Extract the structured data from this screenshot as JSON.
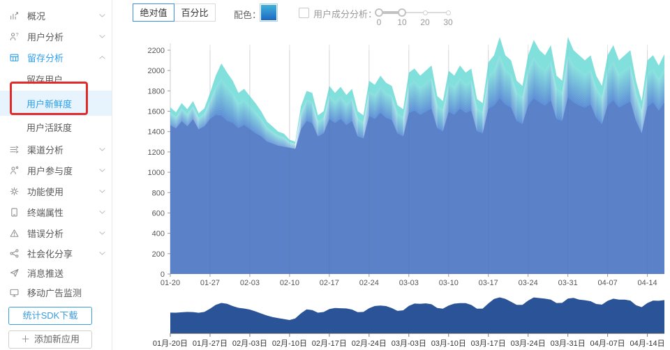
{
  "sidebar": {
    "items": [
      {
        "name": "overview",
        "icon": "chart-trend",
        "label": "概况",
        "chevron": "down"
      },
      {
        "name": "user-analysis",
        "icon": "user-question",
        "label": "用户分析",
        "chevron": "down"
      },
      {
        "name": "retention-analysis",
        "icon": "retention-grid",
        "label": "留存分析",
        "chevron": "up",
        "parent_active": true
      },
      {
        "name": "retained-users",
        "label": "留存用户",
        "sub": true
      },
      {
        "name": "user-freshness",
        "label": "用户新鲜度",
        "sub": true,
        "selected": true
      },
      {
        "name": "user-activity",
        "label": "用户活跃度",
        "sub": true
      },
      {
        "name": "channel-analysis",
        "icon": "channel",
        "label": "渠道分析",
        "chevron": "down"
      },
      {
        "name": "user-engagement",
        "icon": "user-engage",
        "label": "用户参与度",
        "chevron": "down"
      },
      {
        "name": "feature-usage",
        "icon": "gear",
        "label": "功能使用",
        "chevron": "down"
      },
      {
        "name": "device-attributes",
        "icon": "device",
        "label": "终端属性",
        "chevron": "down"
      },
      {
        "name": "error-analysis",
        "icon": "warning-triangle",
        "label": "错误分析",
        "chevron": "down"
      },
      {
        "name": "social-share",
        "icon": "share-nodes",
        "label": "社会化分享",
        "chevron": "down",
        "compact": true
      },
      {
        "name": "message-push",
        "icon": "paper-plane",
        "label": "消息推送",
        "compact": true
      },
      {
        "name": "mobile-ad-monitor",
        "icon": "ad-monitor",
        "label": "移动广告监测",
        "compact": true
      }
    ],
    "sdk_button": "统计SDK下载",
    "add_app_button": "添加新应用"
  },
  "toolbar": {
    "view_buttons": [
      {
        "label": "绝对值",
        "selected": true
      },
      {
        "label": "百分比",
        "selected": false
      }
    ],
    "color_label": "配色：",
    "composition_label": "用户成分分析：",
    "composition_checked": false,
    "slider": {
      "min": 0,
      "max": 30,
      "tick_labels": [
        "0",
        "10",
        "20",
        "30"
      ],
      "handle_values": [
        0,
        10
      ]
    }
  },
  "chart_data": {
    "type": "area",
    "subtype": "stacked-area-freshness",
    "title": "",
    "xlabel": "",
    "ylabel": "",
    "y_ticks": [
      0,
      200,
      400,
      600,
      800,
      1000,
      1200,
      1400,
      1600,
      1800,
      2000,
      2200
    ],
    "ylim": [
      0,
      2300
    ],
    "x_tick_labels": [
      "01-20",
      "01-27",
      "02-03",
      "02-10",
      "02-17",
      "02-24",
      "03-03",
      "03-10",
      "03-17",
      "03-24",
      "03-31",
      "04-07",
      "04-14"
    ],
    "days_per_tick": 7,
    "grid": "vertical-only",
    "series_note": "daily stacked users by freshness cohort; base = newest-cohort band, totals = full stack height",
    "totals": [
      1640,
      1590,
      1680,
      1620,
      1700,
      1580,
      1630,
      1780,
      1950,
      2070,
      1980,
      1900,
      1780,
      1820,
      1750,
      1680,
      1600,
      1500,
      1450,
      1400,
      1380,
      1320,
      1300,
      1650,
      1800,
      1780,
      1560,
      1600,
      1850,
      1780,
      1840,
      1760,
      1820,
      1600,
      1560,
      1900,
      1860,
      1950,
      1880,
      1850,
      1660,
      1620,
      1980,
      2020,
      1950,
      2000,
      2050,
      1750,
      1700,
      2000,
      1950,
      2050,
      1980,
      2020,
      1720,
      1680,
      2080,
      2150,
      2330,
      2150,
      2100,
      1900,
      1850,
      2150,
      2300,
      2200,
      2150,
      2250,
      1950,
      1900,
      2330,
      2200,
      2150,
      2100,
      2150,
      1950,
      1850,
      2150,
      2250,
      2100,
      2150,
      2200,
      1900,
      1700,
      2100,
      2150,
      2050,
      2160
    ],
    "base_series": [
      1460,
      1430,
      1500,
      1450,
      1520,
      1420,
      1450,
      1520,
      1560,
      1550,
      1500,
      1480,
      1430,
      1460,
      1420,
      1380,
      1350,
      1300,
      1280,
      1260,
      1250,
      1240,
      1230,
      1420,
      1500,
      1480,
      1350,
      1380,
      1520,
      1480,
      1520,
      1460,
      1500,
      1350,
      1330,
      1550,
      1520,
      1580,
      1530,
      1510,
      1380,
      1350,
      1580,
      1600,
      1560,
      1590,
      1620,
      1430,
      1400,
      1590,
      1560,
      1620,
      1580,
      1600,
      1400,
      1380,
      1620,
      1650,
      1720,
      1660,
      1630,
      1500,
      1470,
      1650,
      1720,
      1680,
      1650,
      1700,
      1520,
      1500,
      1730,
      1680,
      1650,
      1630,
      1660,
      1530,
      1470,
      1650,
      1700,
      1630,
      1660,
      1690,
      1500,
      1380,
      1640,
      1680,
      1600,
      1680
    ],
    "band_count": 30,
    "top_band_share": 0.3,
    "colors": {
      "base_band": "#5b82c8",
      "band_gradient_start": "#5589d4",
      "band_gradient_end": "#82e0dc",
      "gridline": "#e2e2e2",
      "axis_line": "#d9d9d9",
      "tick_text": "#555555"
    },
    "navigator": {
      "fill": "#2b5397",
      "axis_line": "#4a5568",
      "value_window": [
        800,
        2450
      ],
      "x_tick_labels": [
        "01月-20日",
        "01月-27日",
        "02月-03日",
        "02月-10日",
        "02月-17日",
        "02月-24日",
        "03月-03日",
        "03月-10日",
        "03月-17日",
        "03月-24日",
        "03月-31日",
        "04月-07日",
        "04月-14日"
      ]
    }
  },
  "ui_colors": {
    "accent_blue": "#2b9ff0",
    "selected_row_bg": "#e7f4fe",
    "highlight_red": "#e12a2a",
    "swatch_top": "#41b1d9",
    "swatch_bottom": "#1d68c2"
  }
}
